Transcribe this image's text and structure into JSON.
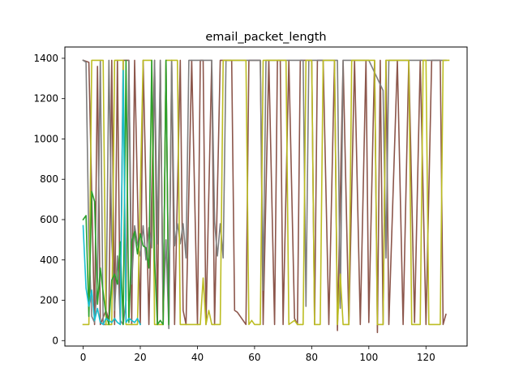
{
  "chart_data": {
    "type": "line",
    "title": "email_packet_length",
    "xlabel": "",
    "ylabel": "",
    "xlim": [
      -6.4,
      134.4
    ],
    "ylim": [
      -27,
      1456
    ],
    "x_ticks": [
      0,
      20,
      40,
      60,
      80,
      100,
      120
    ],
    "y_ticks": [
      0,
      200,
      400,
      600,
      800,
      1000,
      1200,
      1400
    ],
    "grid": false,
    "legend": "none",
    "series": [
      {
        "color": "#8c564b",
        "points": [
          [
            0,
            1390
          ],
          [
            2,
            1380
          ],
          [
            4,
            80
          ],
          [
            5,
            1360
          ],
          [
            6,
            80
          ],
          [
            8,
            150
          ],
          [
            9,
            100
          ],
          [
            10,
            1390
          ],
          [
            11,
            80
          ],
          [
            12,
            1390
          ],
          [
            13,
            80
          ],
          [
            14,
            1390
          ],
          [
            16,
            1390
          ],
          [
            17,
            80
          ],
          [
            18,
            1390
          ],
          [
            20,
            80
          ],
          [
            21,
            1390
          ],
          [
            23,
            80
          ],
          [
            25,
            1390
          ],
          [
            26,
            80
          ],
          [
            27,
            1390
          ],
          [
            28,
            80
          ],
          [
            29,
            1390
          ],
          [
            30,
            80
          ],
          [
            31,
            1390
          ],
          [
            32,
            80
          ],
          [
            34,
            1390
          ],
          [
            35,
            150
          ],
          [
            36,
            80
          ],
          [
            38,
            1390
          ],
          [
            40,
            80
          ],
          [
            41,
            1390
          ],
          [
            42,
            1390
          ],
          [
            43,
            80
          ],
          [
            45,
            1390
          ],
          [
            46,
            80
          ],
          [
            48,
            1390
          ],
          [
            50,
            1390
          ],
          [
            52,
            1390
          ],
          [
            53,
            150
          ],
          [
            54,
            140
          ],
          [
            57,
            80
          ],
          [
            58,
            1390
          ],
          [
            60,
            1390
          ],
          [
            62,
            1390
          ],
          [
            63,
            80
          ],
          [
            65,
            1390
          ],
          [
            67,
            80
          ],
          [
            68,
            1390
          ],
          [
            69,
            1390
          ],
          [
            70,
            80
          ],
          [
            72,
            1390
          ],
          [
            74,
            110
          ],
          [
            75,
            80
          ],
          [
            76,
            1390
          ],
          [
            78,
            1390
          ],
          [
            80,
            1390
          ],
          [
            81,
            80
          ],
          [
            82,
            1390
          ],
          [
            84,
            1390
          ],
          [
            86,
            80
          ],
          [
            88,
            1390
          ],
          [
            89,
            50
          ],
          [
            91,
            1390
          ],
          [
            93,
            80
          ],
          [
            95,
            1390
          ],
          [
            97,
            80
          ],
          [
            99,
            1390
          ],
          [
            100,
            90
          ],
          [
            102,
            1390
          ],
          [
            103,
            40
          ],
          [
            104,
            1390
          ],
          [
            105,
            80
          ],
          [
            106,
            1390
          ],
          [
            107,
            80
          ],
          [
            110,
            1390
          ],
          [
            112,
            80
          ],
          [
            114,
            1390
          ],
          [
            116,
            90
          ],
          [
            118,
            1390
          ],
          [
            120,
            80
          ],
          [
            122,
            1390
          ],
          [
            125,
            1390
          ],
          [
            126,
            80
          ],
          [
            127,
            130
          ]
        ]
      },
      {
        "color": "#7f7f7f",
        "points": [
          [
            0,
            1390
          ],
          [
            1,
            1380
          ],
          [
            2,
            480
          ],
          [
            3,
            120
          ],
          [
            4,
            90
          ],
          [
            5,
            300
          ],
          [
            6,
            1390
          ],
          [
            7,
            80
          ],
          [
            8,
            80
          ],
          [
            9,
            1390
          ],
          [
            10,
            500
          ],
          [
            11,
            150
          ],
          [
            12,
            420
          ],
          [
            13,
            100
          ],
          [
            14,
            80
          ],
          [
            15,
            200
          ],
          [
            16,
            1390
          ],
          [
            17,
            280
          ],
          [
            18,
            570
          ],
          [
            19,
            480
          ],
          [
            20,
            420
          ],
          [
            21,
            570
          ],
          [
            22,
            400
          ],
          [
            23,
            560
          ],
          [
            24,
            460
          ],
          [
            25,
            1390
          ],
          [
            26,
            480
          ],
          [
            27,
            1390
          ],
          [
            28,
            140
          ],
          [
            29,
            500
          ],
          [
            30,
            60
          ],
          [
            31,
            1390
          ],
          [
            32,
            470
          ],
          [
            33,
            580
          ],
          [
            34,
            480
          ],
          [
            35,
            580
          ],
          [
            36,
            410
          ],
          [
            37,
            1390
          ],
          [
            40,
            1390
          ],
          [
            45,
            1390
          ],
          [
            46,
            590
          ],
          [
            47,
            420
          ],
          [
            48,
            580
          ],
          [
            49,
            410
          ],
          [
            50,
            1390
          ],
          [
            62,
            1390
          ],
          [
            63,
            250
          ],
          [
            64,
            1390
          ],
          [
            65,
            1390
          ],
          [
            77,
            1390
          ],
          [
            78,
            170
          ],
          [
            79,
            1390
          ],
          [
            82,
            1390
          ],
          [
            87,
            1390
          ],
          [
            88,
            1390
          ],
          [
            89,
            1390
          ],
          [
            90,
            160
          ],
          [
            91,
            1390
          ],
          [
            93,
            1390
          ],
          [
            96,
            1390
          ],
          [
            100,
            1390
          ],
          [
            105,
            1240
          ],
          [
            106,
            410
          ],
          [
            107,
            1390
          ],
          [
            109,
            1390
          ],
          [
            120,
            1390
          ],
          [
            127,
            1390
          ]
        ]
      },
      {
        "color": "#bcbd22",
        "points": [
          [
            0,
            80
          ],
          [
            2,
            80
          ],
          [
            3,
            1390
          ],
          [
            7,
            1390
          ],
          [
            8,
            80
          ],
          [
            10,
            80
          ],
          [
            11,
            1390
          ],
          [
            14,
            1390
          ],
          [
            15,
            80
          ],
          [
            19,
            80
          ],
          [
            21,
            1390
          ],
          [
            24,
            1390
          ],
          [
            25,
            80
          ],
          [
            28,
            80
          ],
          [
            29,
            1390
          ],
          [
            33,
            1390
          ],
          [
            34,
            80
          ],
          [
            41,
            80
          ],
          [
            42,
            310
          ],
          [
            43,
            80
          ],
          [
            44,
            150
          ],
          [
            45,
            80
          ],
          [
            48,
            80
          ],
          [
            49,
            1390
          ],
          [
            57,
            1390
          ],
          [
            58,
            80
          ],
          [
            59,
            100
          ],
          [
            60,
            80
          ],
          [
            62,
            80
          ],
          [
            63,
            1390
          ],
          [
            71,
            1390
          ],
          [
            72,
            80
          ],
          [
            74,
            100
          ],
          [
            75,
            80
          ],
          [
            77,
            80
          ],
          [
            78,
            1390
          ],
          [
            80,
            1390
          ],
          [
            81,
            80
          ],
          [
            83,
            80
          ],
          [
            84,
            1390
          ],
          [
            88,
            1390
          ],
          [
            89,
            80
          ],
          [
            90,
            330
          ],
          [
            91,
            80
          ],
          [
            93,
            80
          ],
          [
            94,
            1390
          ],
          [
            102,
            1390
          ],
          [
            103,
            80
          ],
          [
            105,
            80
          ],
          [
            106,
            1390
          ],
          [
            114,
            1390
          ],
          [
            115,
            80
          ],
          [
            118,
            80
          ],
          [
            119,
            1390
          ],
          [
            120,
            1390
          ],
          [
            121,
            80
          ],
          [
            125,
            80
          ],
          [
            126,
            1390
          ],
          [
            128,
            1390
          ]
        ]
      },
      {
        "color": "#2ca02c",
        "points": [
          [
            0,
            600
          ],
          [
            1,
            620
          ],
          [
            2,
            120
          ],
          [
            3,
            740
          ],
          [
            4,
            690
          ],
          [
            5,
            180
          ],
          [
            6,
            360
          ],
          [
            7,
            240
          ],
          [
            8,
            130
          ],
          [
            9,
            80
          ],
          [
            10,
            300
          ],
          [
            11,
            330
          ],
          [
            12,
            280
          ],
          [
            13,
            490
          ],
          [
            14,
            80
          ],
          [
            15,
            1390
          ],
          [
            16,
            90
          ],
          [
            17,
            490
          ],
          [
            18,
            540
          ],
          [
            19,
            430
          ],
          [
            20,
            530
          ],
          [
            21,
            470
          ],
          [
            22,
            460
          ],
          [
            23,
            360
          ],
          [
            24,
            1390
          ],
          [
            25,
            400
          ],
          [
            26,
            80
          ],
          [
            27,
            100
          ],
          [
            28,
            80
          ],
          [
            29,
            1390
          ],
          [
            30,
            80
          ]
        ]
      },
      {
        "color": "#17becf",
        "points": [
          [
            0,
            570
          ],
          [
            1,
            260
          ],
          [
            2,
            170
          ],
          [
            3,
            250
          ],
          [
            4,
            100
          ],
          [
            5,
            160
          ],
          [
            6,
            90
          ],
          [
            7,
            80
          ],
          [
            8,
            110
          ],
          [
            9,
            100
          ],
          [
            10,
            90
          ],
          [
            11,
            110
          ],
          [
            12,
            90
          ],
          [
            13,
            80
          ],
          [
            14,
            1340
          ],
          [
            15,
            90
          ],
          [
            16,
            110
          ],
          [
            17,
            100
          ],
          [
            18,
            90
          ],
          [
            19,
            110
          ],
          [
            20,
            80
          ]
        ]
      }
    ]
  }
}
